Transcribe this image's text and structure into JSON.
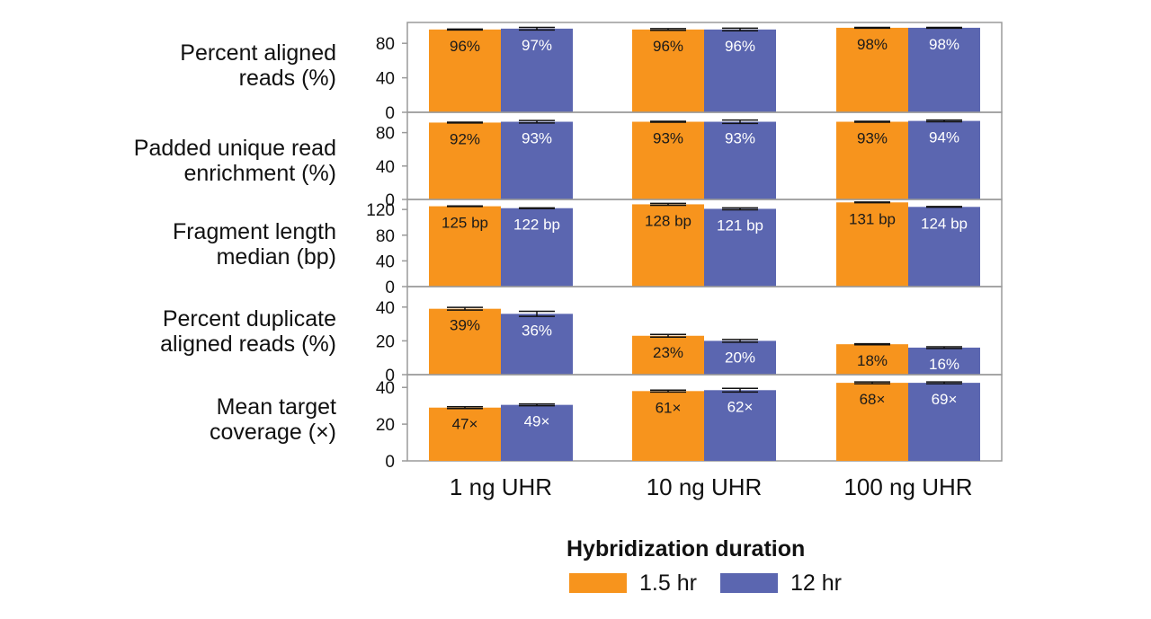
{
  "chart_data": {
    "type": "bar",
    "categories": [
      "1 ng UHR",
      "10 ng UHR",
      "100 ng UHR"
    ],
    "legend": {
      "title": "Hybridization duration",
      "placement": "bottom"
    },
    "series_names": [
      "1.5 hr",
      "12 hr"
    ],
    "colors": {
      "1.5 hr": "#F7941D",
      "12 hr": "#5B66B0"
    },
    "panels": [
      {
        "label_lines": [
          "Percent aligned",
          "reads (%)"
        ],
        "ylim": [
          0,
          100
        ],
        "yticks": [
          0,
          40,
          80
        ],
        "series": [
          {
            "name": "1.5 hr",
            "values": [
              96,
              96,
              98
            ],
            "data_labels": [
              "96%",
              "96%",
              "98%"
            ],
            "error": [
              0.5,
              1,
              0.5
            ]
          },
          {
            "name": "12 hr",
            "values": [
              97,
              96,
              98
            ],
            "data_labels": [
              "97%",
              "96%",
              "98%"
            ],
            "error": [
              1.5,
              1.5,
              0.5
            ]
          }
        ]
      },
      {
        "label_lines": [
          "Padded unique read",
          "enrichment (%)"
        ],
        "ylim": [
          0,
          100
        ],
        "yticks": [
          0,
          40,
          80
        ],
        "series": [
          {
            "name": "1.5 hr",
            "values": [
              92,
              93,
              93
            ],
            "data_labels": [
              "92%",
              "93%",
              "93%"
            ],
            "error": [
              0.5,
              0.5,
              0.5
            ]
          },
          {
            "name": "12 hr",
            "values": [
              93,
              93,
              94
            ],
            "data_labels": [
              "93%",
              "93%",
              "94%"
            ],
            "error": [
              1.5,
              2,
              1
            ]
          }
        ]
      },
      {
        "label_lines": [
          "Fragment length",
          "median (bp)"
        ],
        "ylim": [
          0,
          130
        ],
        "yticks": [
          0,
          40,
          80,
          120
        ],
        "series": [
          {
            "name": "1.5 hr",
            "values": [
              125,
              128,
              131
            ],
            "data_labels": [
              "125 bp",
              "128 bp",
              "131 bp"
            ],
            "error": [
              0.5,
              1.5,
              0.5
            ]
          },
          {
            "name": "12 hr",
            "values": [
              122,
              121,
              124
            ],
            "data_labels": [
              "122 bp",
              "121 bp",
              "124 bp"
            ],
            "error": [
              0.5,
              1.5,
              0.5
            ]
          }
        ]
      },
      {
        "label_lines": [
          "Percent duplicate",
          "aligned reads (%)"
        ],
        "ylim": [
          0,
          50
        ],
        "yticks": [
          0,
          20,
          40
        ],
        "series": [
          {
            "name": "1.5 hr",
            "values": [
              39,
              23,
              18
            ],
            "data_labels": [
              "39%",
              "23%",
              "18%"
            ],
            "error": [
              0.8,
              0.8,
              0.3
            ]
          },
          {
            "name": "12 hr",
            "values": [
              36,
              20,
              16
            ],
            "data_labels": [
              "36%",
              "20%",
              "16%"
            ],
            "error": [
              1.5,
              0.8,
              0.5
            ]
          }
        ]
      },
      {
        "label_lines": [
          "Mean target",
          "coverage (×)"
        ],
        "ylim": [
          0,
          45
        ],
        "yticks": [
          0,
          20,
          40
        ],
        "series": [
          {
            "name": "1.5 hr",
            "values": [
              47,
              61,
              68
            ],
            "data_labels": [
              "47×",
              "61×",
              "68×"
            ],
            "error": [
              0.5,
              0.5,
              0.5
            ]
          },
          {
            "name": "12 hr",
            "values": [
              49,
              62,
              69
            ],
            "data_labels": [
              "49×",
              "62×",
              "69×"
            ],
            "error": [
              0.5,
              1,
              0.5
            ]
          }
        ]
      }
    ],
    "plotted_heights_note_values": [
      [
        29,
        30.5
      ],
      [
        38,
        38.5
      ],
      [
        42.5,
        42.5
      ]
    ],
    "grid": false
  }
}
